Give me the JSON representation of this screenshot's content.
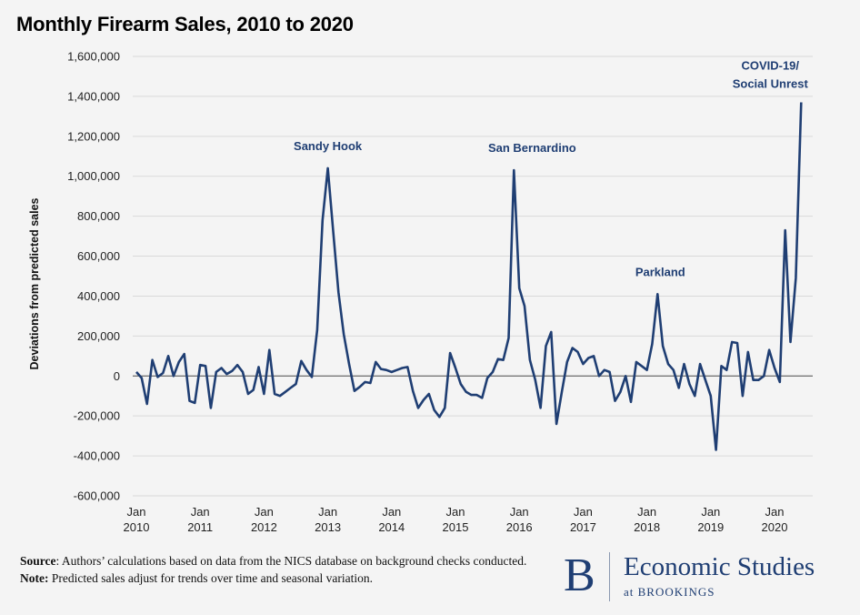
{
  "title": "Monthly Firearm Sales, 2010 to 2020",
  "footer": {
    "source_label": "Source",
    "source_text": ": Authors’ calculations based on data from the NICS database on background checks conducted.",
    "note_label": "Note:",
    "note_text": " Predicted sales adjust for trends over time and seasonal variation."
  },
  "logo": {
    "mark": "B",
    "name": "Economic Studies",
    "sub": "at BROOKINGS"
  },
  "colors": {
    "line": "#1f3e73",
    "zero_line": "#777777",
    "grid": "#d9d9d9"
  },
  "chart_data": {
    "type": "line",
    "title": "Monthly Firearm Sales, 2010 to 2020",
    "xlabel": "",
    "ylabel": "Deviations from predicted sales",
    "ylim": [
      -600000,
      1600000
    ],
    "yticks": [
      -600000,
      -400000,
      -200000,
      0,
      200000,
      400000,
      600000,
      800000,
      1000000,
      1200000,
      1400000,
      1600000
    ],
    "ytick_labels": [
      "-600,000",
      "-400,000",
      "-200,000",
      "0",
      "200,000",
      "400,000",
      "600,000",
      "800,000",
      "1,000,000",
      "1,200,000",
      "1,400,000",
      "1,600,000"
    ],
    "xticks": [
      {
        "month": "Jan",
        "year": "2010",
        "index": 0
      },
      {
        "month": "Jan",
        "year": "2011",
        "index": 12
      },
      {
        "month": "Jan",
        "year": "2012",
        "index": 24
      },
      {
        "month": "Jan",
        "year": "2013",
        "index": 36
      },
      {
        "month": "Jan",
        "year": "2014",
        "index": 48
      },
      {
        "month": "Jan",
        "year": "2015",
        "index": 60
      },
      {
        "month": "Jan",
        "year": "2016",
        "index": 72
      },
      {
        "month": "Jan",
        "year": "2017",
        "index": 84
      },
      {
        "month": "Jan",
        "year": "2018",
        "index": 96
      },
      {
        "month": "Jan",
        "year": "2019",
        "index": 108
      },
      {
        "month": "Jan",
        "year": "2020",
        "index": 120
      }
    ],
    "x_start": "2010-01",
    "grid": "horizontal",
    "annotations": [
      {
        "lines": [
          "Sandy Hook"
        ],
        "index": 36,
        "value": 1040000
      },
      {
        "lines": [
          "San Bernardino"
        ],
        "index": 71,
        "value": 1030000
      },
      {
        "lines": [
          "Parkland"
        ],
        "index": 98,
        "value": 410000
      },
      {
        "lines": [
          "COVID-19/",
          "Social Unrest"
        ],
        "index": 125,
        "value": 1370000
      }
    ],
    "series": [
      {
        "values": [
          20000,
          -10000,
          -140000,
          80000,
          -5000,
          15000,
          100000,
          0,
          70000,
          110000,
          -125000,
          -135000,
          55000,
          50000,
          -160000,
          20000,
          40000,
          10000,
          25000,
          55000,
          20000,
          -90000,
          -70000,
          45000,
          -90000,
          130000,
          -90000,
          -100000,
          -80000,
          -60000,
          -40000,
          75000,
          30000,
          -5000,
          230000,
          780000,
          1040000,
          730000,
          420000,
          210000,
          60000,
          -75000,
          -55000,
          -30000,
          -35000,
          70000,
          35000,
          30000,
          20000,
          30000,
          40000,
          45000,
          -75000,
          -160000,
          -120000,
          -90000,
          -170000,
          -205000,
          -160000,
          115000,
          40000,
          -40000,
          -80000,
          -95000,
          -95000,
          -110000,
          -10000,
          20000,
          85000,
          80000,
          190000,
          1030000,
          440000,
          350000,
          80000,
          -20000,
          -160000,
          150000,
          220000,
          -240000,
          -80000,
          70000,
          140000,
          120000,
          60000,
          90000,
          100000,
          0,
          30000,
          20000,
          -125000,
          -80000,
          0,
          -130000,
          70000,
          50000,
          30000,
          160000,
          410000,
          150000,
          60000,
          30000,
          -60000,
          60000,
          -40000,
          -100000,
          60000,
          -20000,
          -100000,
          -370000,
          50000,
          30000,
          170000,
          165000,
          -100000,
          120000,
          -20000,
          -20000,
          0,
          130000,
          40000,
          -30000,
          730000,
          170000,
          490000,
          1370000
        ]
      }
    ]
  }
}
